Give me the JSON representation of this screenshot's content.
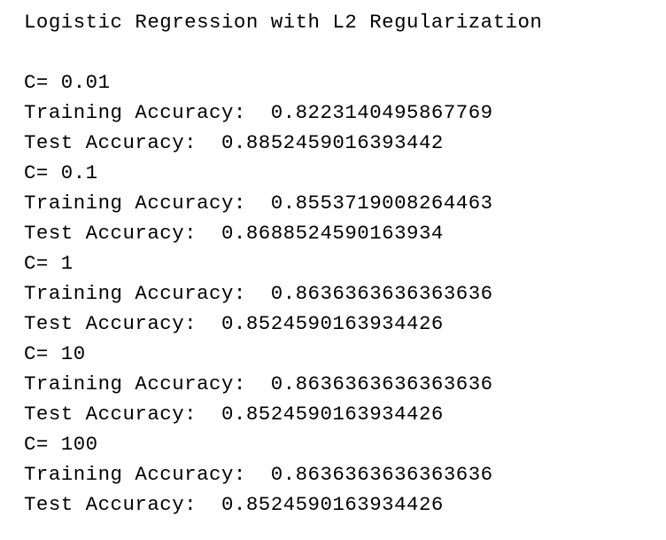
{
  "output": {
    "title": "Logistic Regression with L2 Regularization",
    "runs": [
      {
        "c_line": "C= 0.01",
        "train_line": "Training Accuracy:  0.8223140495867769",
        "test_line": "Test Accuracy:  0.8852459016393442"
      },
      {
        "c_line": "C= 0.1",
        "train_line": "Training Accuracy:  0.8553719008264463",
        "test_line": "Test Accuracy:  0.8688524590163934"
      },
      {
        "c_line": "C= 1",
        "train_line": "Training Accuracy:  0.8636363636363636",
        "test_line": "Test Accuracy:  0.8524590163934426"
      },
      {
        "c_line": "C= 10",
        "train_line": "Training Accuracy:  0.8636363636363636",
        "test_line": "Test Accuracy:  0.8524590163934426"
      },
      {
        "c_line": "C= 100",
        "train_line": "Training Accuracy:  0.8636363636363636",
        "test_line": "Test Accuracy:  0.8524590163934426"
      }
    ]
  }
}
